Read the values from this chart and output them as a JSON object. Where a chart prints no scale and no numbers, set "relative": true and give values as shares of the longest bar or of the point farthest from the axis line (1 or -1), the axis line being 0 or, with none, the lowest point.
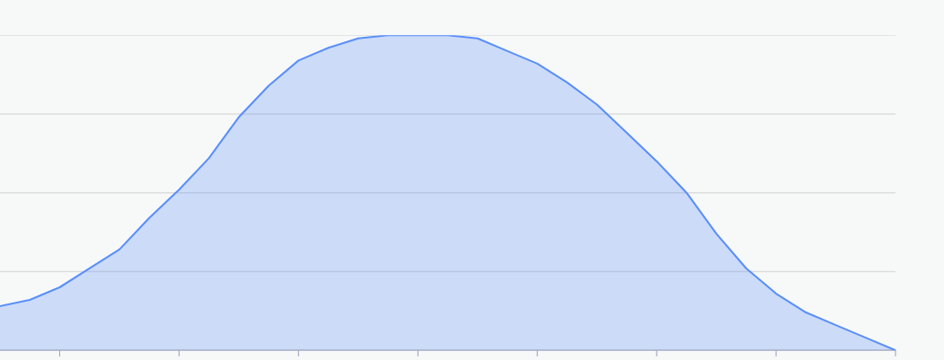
{
  "chart_data": {
    "type": "area",
    "relative": true,
    "grid": "y",
    "legend": false,
    "marker": "none",
    "line_style": "solid",
    "categories": [
      null,
      null,
      null,
      null,
      null,
      null,
      null,
      null,
      null,
      null,
      null,
      null,
      null,
      null,
      null,
      null,
      null,
      null,
      null,
      null,
      null,
      null,
      null,
      null,
      null,
      null,
      null,
      null,
      null,
      null,
      null
    ],
    "series": [
      {
        "color": "#5b8ff9",
        "values": [
          0.14,
          0.16,
          0.2,
          0.26,
          0.32,
          0.42,
          0.51,
          0.61,
          0.74,
          0.84,
          0.92,
          0.96,
          0.99,
          1.0,
          1.0,
          1.0,
          0.99,
          0.95,
          0.91,
          0.85,
          0.78,
          0.69,
          0.6,
          0.5,
          0.37,
          0.26,
          0.18,
          0.12,
          0.08,
          0.04,
          0.0
        ]
      }
    ]
  }
}
